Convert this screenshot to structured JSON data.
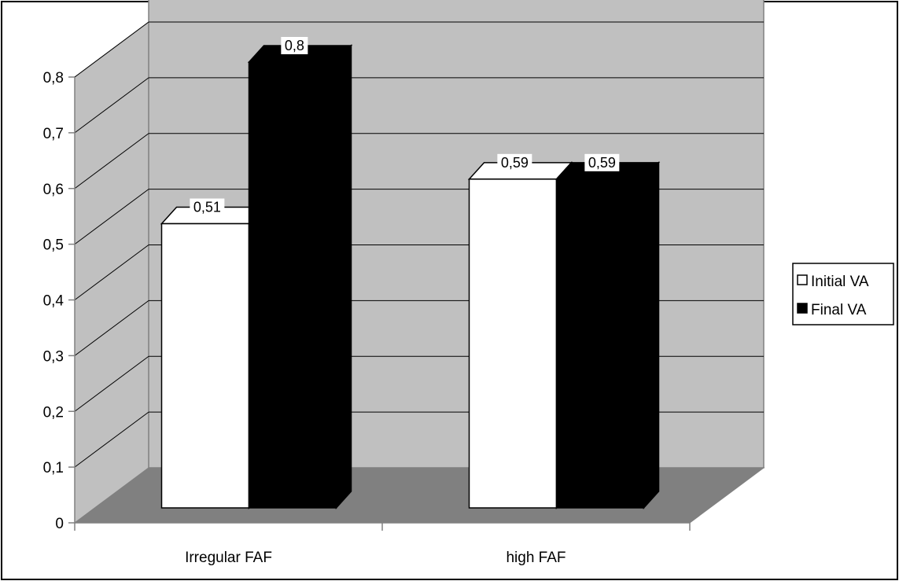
{
  "chart_data": {
    "type": "bar",
    "title": "",
    "xlabel": "",
    "ylabel": "",
    "categories": [
      "Irregular FAF",
      "high FAF"
    ],
    "series": [
      {
        "name": "Initial VA",
        "values": [
          0.51,
          0.59
        ],
        "value_labels": [
          "0,51",
          "0,59"
        ],
        "color": "#ffffff"
      },
      {
        "name": "Final VA",
        "values": [
          0.8,
          0.59
        ],
        "value_labels": [
          "0,8",
          "0,59"
        ],
        "color": "#000000"
      }
    ],
    "ylim": [
      0,
      0.8
    ],
    "y_ticks": [
      0,
      0.1,
      0.2,
      0.3,
      0.4,
      0.5,
      0.6,
      0.7,
      0.8
    ],
    "y_tick_labels": [
      "0",
      "0,1",
      "0,2",
      "0,3",
      "0,4",
      "0,5",
      "0,6",
      "0,7",
      "0,8"
    ],
    "grid": true,
    "three_d": true,
    "legend_position": "right",
    "colors": {
      "back_wall": "#c0c0c0",
      "side_wall": "#c0c0c0",
      "floor": "#808080",
      "grid": "#000000",
      "border": "#000000"
    }
  }
}
